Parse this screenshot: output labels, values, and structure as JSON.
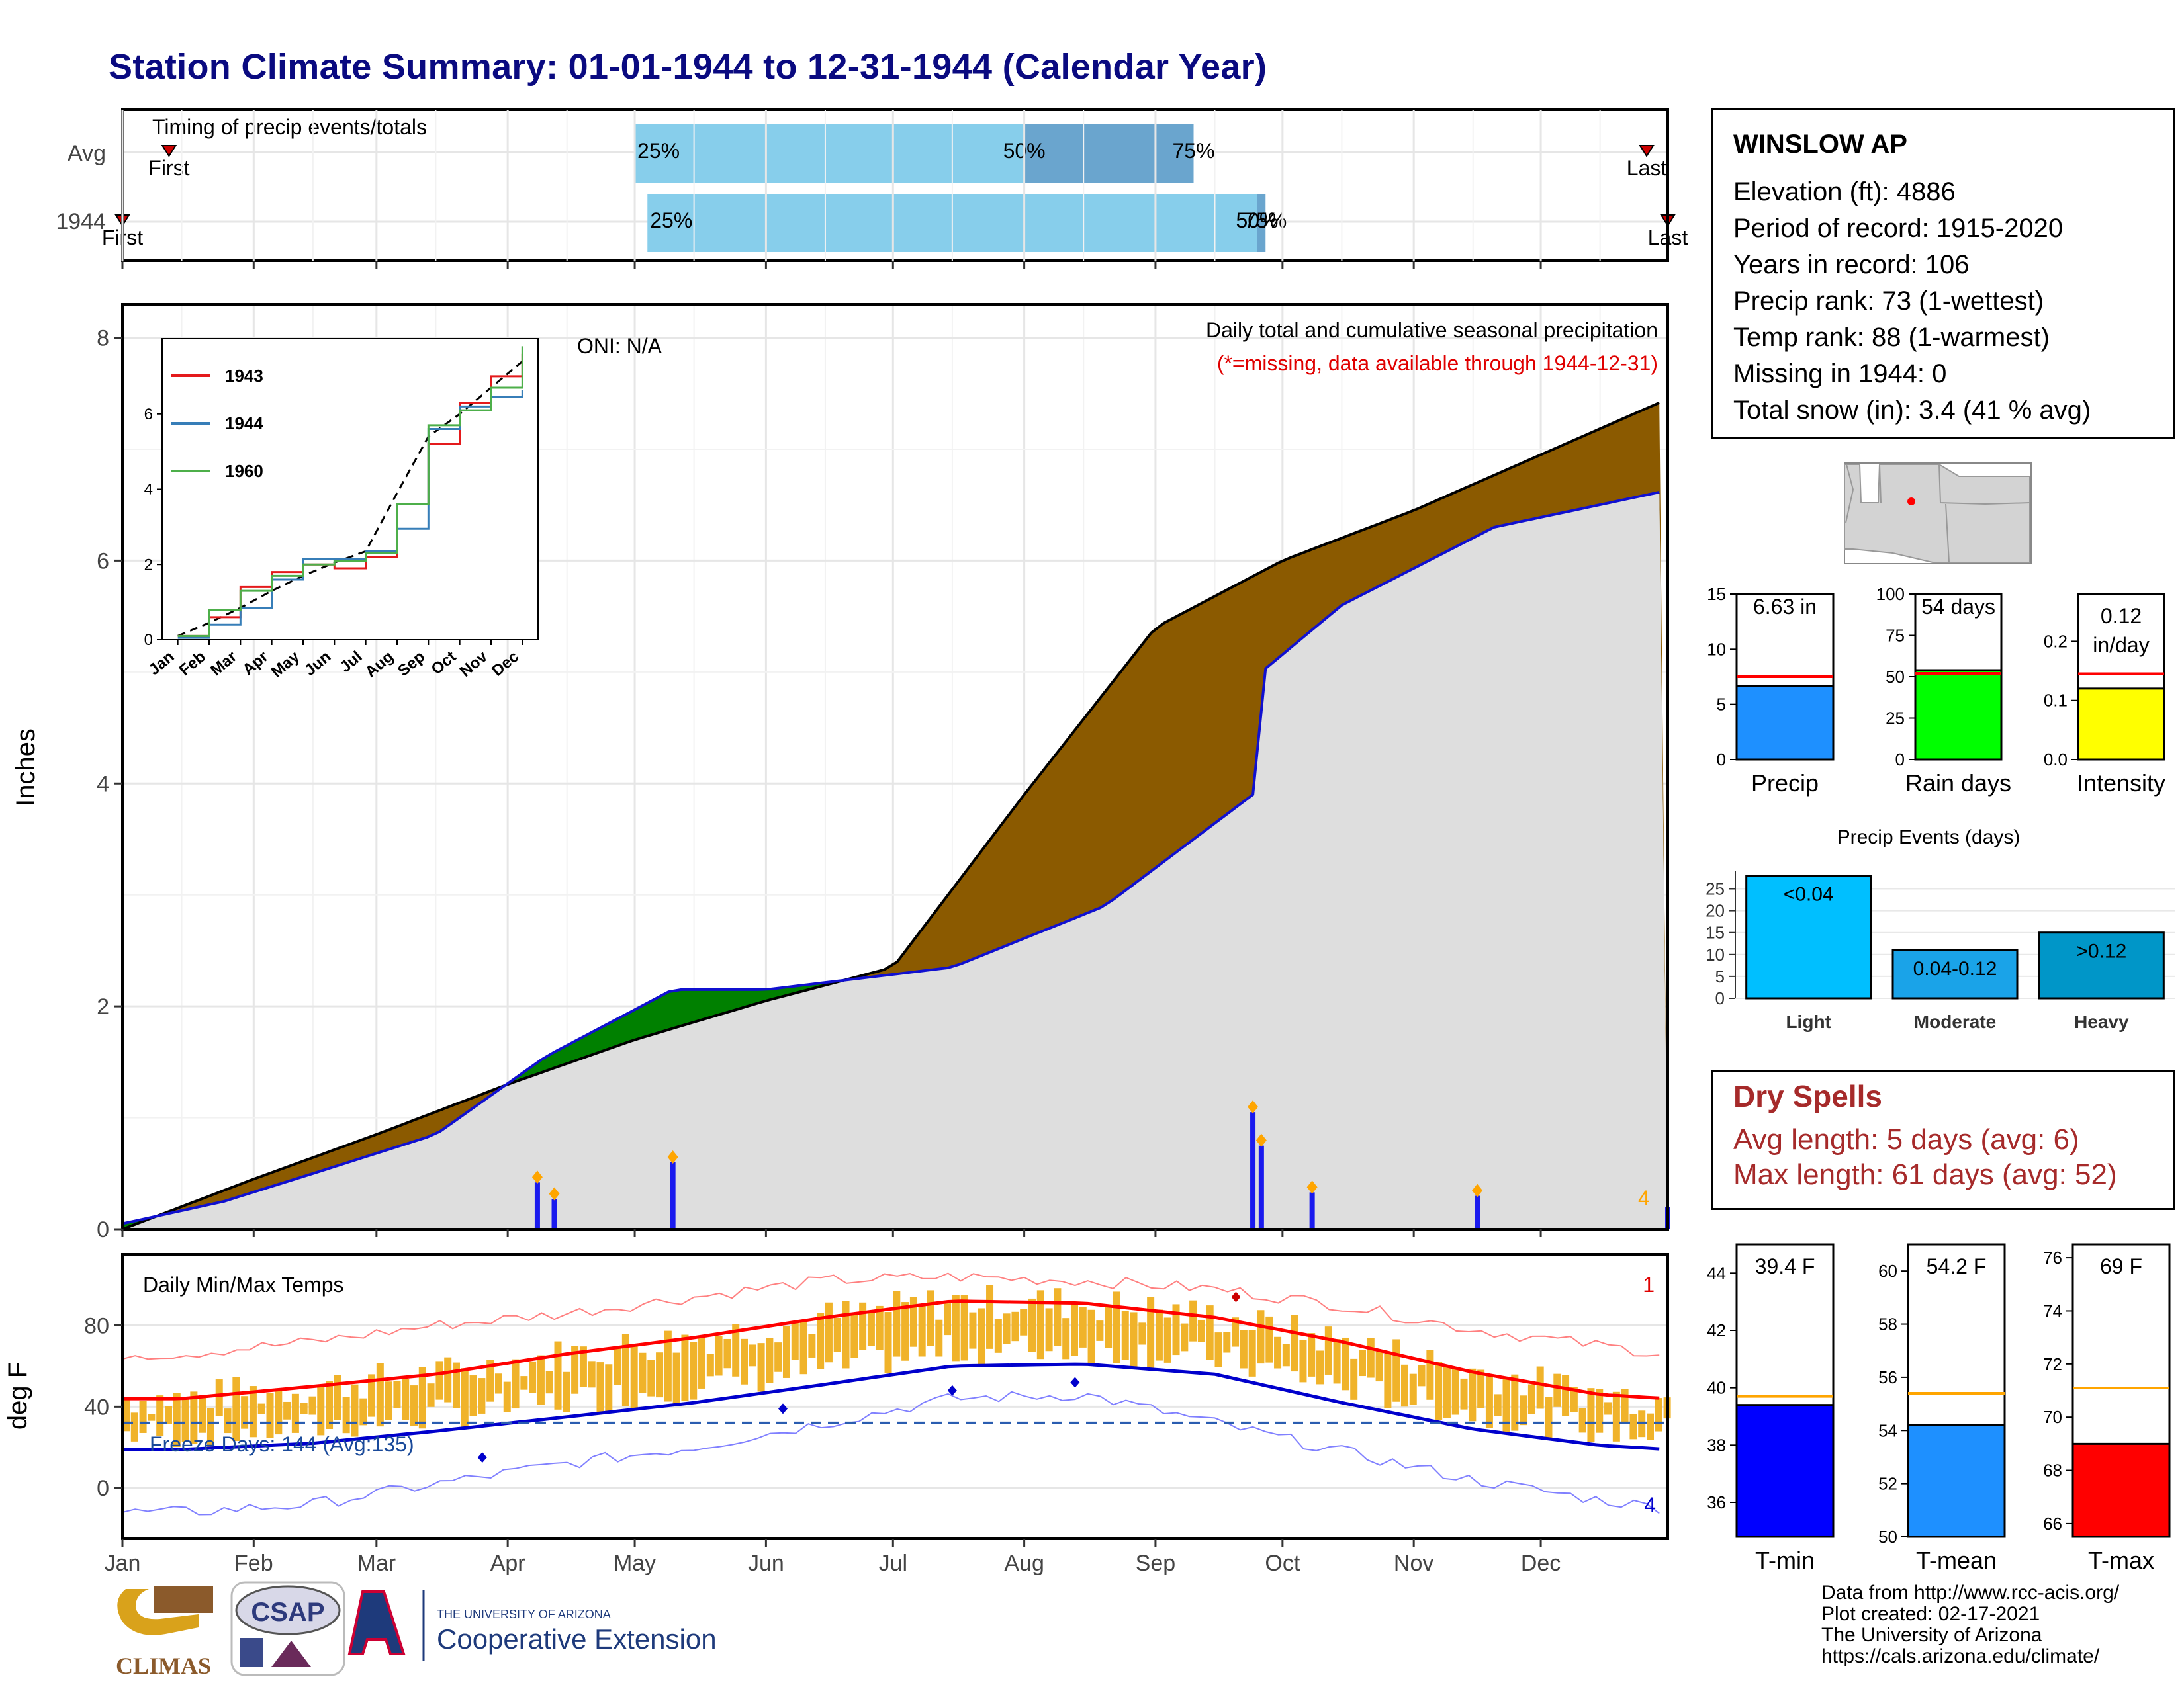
{
  "title": "Station Climate Summary: 01-01-1944 to 12-31-1944 (Calendar Year)",
  "colors": {
    "title": "#0a0a80",
    "cum_brown": "#8b5a00",
    "cum_green": "#008000",
    "cum_gray": "#dedede",
    "line_blue": "#1010d0",
    "bar_blue": "#1a1aee",
    "orange": "#ffa500",
    "pct_light": "#87ceeb",
    "pct_dark": "#6aa5ce",
    "tmax_red": "#ff0000",
    "tmin_blue": "#0000cc",
    "temp_bar": "#f0b32a",
    "freeze_line": "#2a5db0",
    "dry_red": "#a62a2a",
    "grid": "#e6e6e6"
  },
  "timing": {
    "title": "Timing of precip events/totals",
    "rows": [
      {
        "label": "Avg",
        "first_label": "First",
        "last_label": "Last",
        "p25": "25%",
        "p50": "50%",
        "p75": "75%"
      },
      {
        "label": "1944",
        "first_label": "First",
        "last_label": "Last",
        "p25": "25%",
        "p50": "50%",
        "p75": "75%"
      }
    ]
  },
  "precip_panel": {
    "ylabel": "Inches",
    "yticks": [
      "0",
      "2",
      "4",
      "6",
      "8"
    ],
    "annotation_title": "Daily total and cumulative seasonal precipitation",
    "annotation_note": "(*=missing, data available through 1944-12-31)",
    "oni": "ONI: N/A",
    "count_label": "4"
  },
  "inset": {
    "yticks": [
      "0",
      "2",
      "4",
      "6"
    ],
    "months": [
      "Jan",
      "Feb",
      "Mar",
      "Apr",
      "May",
      "Jun",
      "Jul",
      "Aug",
      "Sep",
      "Oct",
      "Nov",
      "Dec"
    ],
    "legend": [
      {
        "name": "1943",
        "color": "#e41a1c"
      },
      {
        "name": "1944",
        "color": "#377eb8"
      },
      {
        "name": "1960",
        "color": "#4daf4a"
      }
    ]
  },
  "temp_panel": {
    "title": "Daily Min/Max Temps",
    "ylabel": "deg F",
    "yticks": [
      "0",
      "40",
      "80"
    ],
    "freeze_label": "Freeze Days: 144 (Avg:135)",
    "max_count": "1",
    "min_count": "4"
  },
  "x_months": [
    "Jan",
    "Feb",
    "Mar",
    "Apr",
    "May",
    "Jun",
    "Jul",
    "Aug",
    "Sep",
    "Oct",
    "Nov",
    "Dec"
  ],
  "station": {
    "name": "WINSLOW AP",
    "elevation": "Elevation (ft): 4886",
    "period": "Period of record: 1915-2020",
    "years": "Years in record: 106",
    "precip_rank": "Precip rank: 73 (1-wettest)",
    "temp_rank": "Temp rank: 88 (1-warmest)",
    "missing": "Missing in 1944: 0",
    "snow": "Total snow (in): 3.4 (41 % avg)"
  },
  "mini_bars": [
    {
      "label": "Precip",
      "value_label": "6.63 in",
      "yticks": [
        "0",
        "5",
        "10",
        "15"
      ]
    },
    {
      "label": "Rain days",
      "value_label": "54 days",
      "yticks": [
        "0",
        "25",
        "50",
        "75",
        "100"
      ]
    },
    {
      "label": "Intensity",
      "value_label": "0.12 in/day",
      "yticks": [
        "0.0",
        "0.1",
        "0.2"
      ]
    }
  ],
  "events": {
    "title": "Precip Events (days)",
    "yticks": [
      "0",
      "5",
      "10",
      "15",
      "20",
      "25"
    ],
    "bars": [
      {
        "label": "Light",
        "value_label": "<0.04"
      },
      {
        "label": "Moderate",
        "value_label": "0.04-0.12"
      },
      {
        "label": "Heavy",
        "value_label": ">0.12"
      }
    ]
  },
  "dry_spells": {
    "title": "Dry Spells",
    "avg": "Avg length: 5 days (avg: 6)",
    "max": "Max length: 61 days (avg: 52)"
  },
  "temp_bars": [
    {
      "label": "T-min",
      "value_label": "39.4 F",
      "yticks": [
        "36",
        "38",
        "40",
        "42",
        "44"
      ]
    },
    {
      "label": "T-mean",
      "value_label": "54.2 F",
      "yticks": [
        "50",
        "52",
        "54",
        "56",
        "58",
        "60"
      ]
    },
    {
      "label": "T-max",
      "value_label": "69 F",
      "yticks": [
        "66",
        "68",
        "70",
        "72",
        "74",
        "76"
      ]
    }
  ],
  "credits": [
    "Data from http://www.rcc-acis.org/",
    "Plot created: 02-17-2021",
    "The University of Arizona",
    "https://cals.arizona.edu/climate/"
  ],
  "logos": {
    "climas": "CLIMAS",
    "csap": "CSAP",
    "ua_line1": "THE UNIVERSITY OF ARIZONA",
    "ua_line2": "Cooperative Extension"
  },
  "chart_data": [
    {
      "type": "bar",
      "title": "Timing of precip events/totals",
      "categories": [
        "Avg",
        "1944"
      ],
      "series": [
        {
          "name": "First",
          "values": [
            "01-12",
            "01-01"
          ]
        },
        {
          "name": "25%",
          "values": [
            "05-01",
            "05-04"
          ]
        },
        {
          "name": "50%",
          "values": [
            "08-01",
            "09-25"
          ]
        },
        {
          "name": "75%",
          "values": [
            "09-10",
            "09-27"
          ]
        },
        {
          "name": "Last",
          "values": [
            "12-26",
            "12-31"
          ]
        }
      ]
    },
    {
      "type": "area",
      "title": "Daily total and cumulative seasonal precipitation",
      "ylabel": "Inches",
      "ylim": [
        0,
        8.3
      ],
      "series": [
        {
          "name": "Average cumulative",
          "x": [
            "01-01",
            "02-01",
            "03-01",
            "04-01",
            "05-01",
            "06-01",
            "07-01",
            "08-01",
            "09-01",
            "10-01",
            "11-01",
            "12-01",
            "12-31"
          ],
          "values": [
            0.0,
            0.45,
            0.85,
            1.3,
            1.7,
            2.05,
            2.35,
            3.9,
            5.4,
            6.0,
            6.45,
            6.95,
            7.45
          ]
        },
        {
          "name": "1944 cumulative",
          "x": [
            "01-01",
            "01-25",
            "02-15",
            "03-15",
            "04-10",
            "05-10",
            "06-01",
            "07-15",
            "08-20",
            "09-24",
            "09-26",
            "10-15",
            "11-20",
            "12-31"
          ],
          "values": [
            0.05,
            0.25,
            0.5,
            0.85,
            1.55,
            2.15,
            2.15,
            2.35,
            2.9,
            3.9,
            5.0,
            5.6,
            6.3,
            6.63
          ]
        }
      ],
      "daily_totals": [
        {
          "x": "04-08",
          "value": 0.42
        },
        {
          "x": "04-12",
          "value": 0.27
        },
        {
          "x": "05-10",
          "value": 0.6
        },
        {
          "x": "09-24",
          "value": 1.05
        },
        {
          "x": "09-26",
          "value": 0.75
        },
        {
          "x": "10-08",
          "value": 0.33
        },
        {
          "x": "11-16",
          "value": 0.3
        },
        {
          "x": "12-31",
          "value": 0.2
        }
      ]
    },
    {
      "type": "line",
      "title": "",
      "x": [
        "Jan",
        "Feb",
        "Mar",
        "Apr",
        "May",
        "Jun",
        "Jul",
        "Aug",
        "Sep",
        "Oct",
        "Nov",
        "Dec"
      ],
      "series": [
        {
          "name": "1943",
          "values": [
            0.1,
            0.6,
            1.4,
            1.8,
            2.0,
            1.9,
            2.2,
            3.6,
            5.2,
            6.3,
            7.0,
            7.6
          ]
        },
        {
          "name": "1944",
          "values": [
            0.05,
            0.4,
            0.85,
            1.6,
            2.15,
            2.15,
            2.35,
            2.95,
            5.6,
            6.2,
            6.45,
            6.63
          ]
        },
        {
          "name": "1960",
          "values": [
            0.1,
            0.8,
            1.3,
            1.7,
            2.0,
            2.1,
            2.3,
            3.6,
            5.7,
            6.1,
            6.7,
            7.8
          ]
        }
      ]
    },
    {
      "type": "line",
      "title": "Daily Min/Max Temps",
      "ylabel": "deg F",
      "ylim": [
        -25,
        115
      ],
      "x": [
        "Jan",
        "Feb",
        "Mar",
        "Apr",
        "May",
        "Jun",
        "Jul",
        "Aug",
        "Sep",
        "Oct",
        "Nov",
        "Dec",
        "Dec31"
      ],
      "series": [
        {
          "name": "Normal max",
          "values": [
            44,
            50,
            56,
            66,
            74,
            84,
            92,
            91,
            84,
            72,
            57,
            46,
            44
          ]
        },
        {
          "name": "Normal min",
          "values": [
            19,
            22,
            28,
            35,
            42,
            51,
            60,
            61,
            56,
            42,
            29,
            21,
            19
          ]
        },
        {
          "name": "Record max",
          "values": [
            66,
            72,
            80,
            86,
            94,
            102,
            104,
            102,
            98,
            90,
            78,
            70,
            66
          ]
        },
        {
          "name": "Record min",
          "values": [
            -12,
            -8,
            2,
            12,
            20,
            32,
            44,
            46,
            32,
            18,
            4,
            -6,
            -10
          ]
        }
      ],
      "freeze_threshold": 32
    },
    {
      "type": "bar",
      "categories": [
        "Precip"
      ],
      "values": [
        6.63
      ],
      "average": 7.5,
      "ylim": [
        0,
        15
      ],
      "ylabel": "in"
    },
    {
      "type": "bar",
      "categories": [
        "Rain days"
      ],
      "values": [
        54
      ],
      "average": 52,
      "ylim": [
        0,
        100
      ]
    },
    {
      "type": "bar",
      "categories": [
        "Intensity"
      ],
      "values": [
        0.12
      ],
      "average": 0.145,
      "ylim": [
        0,
        0.28
      ]
    },
    {
      "type": "bar",
      "title": "Precip Events (days)",
      "categories": [
        "Light",
        "Moderate",
        "Heavy"
      ],
      "values": [
        28,
        11,
        15
      ],
      "ylim": [
        0,
        29
      ]
    },
    {
      "type": "bar",
      "categories": [
        "T-min"
      ],
      "values": [
        39.4
      ],
      "average": 39.7,
      "ylim": [
        34.8,
        45
      ]
    },
    {
      "type": "bar",
      "categories": [
        "T-mean"
      ],
      "values": [
        54.2
      ],
      "average": 55.4,
      "ylim": [
        50,
        61
      ]
    },
    {
      "type": "bar",
      "categories": [
        "T-max"
      ],
      "values": [
        69
      ],
      "average": 71.1,
      "ylim": [
        65.5,
        76.5
      ]
    }
  ]
}
